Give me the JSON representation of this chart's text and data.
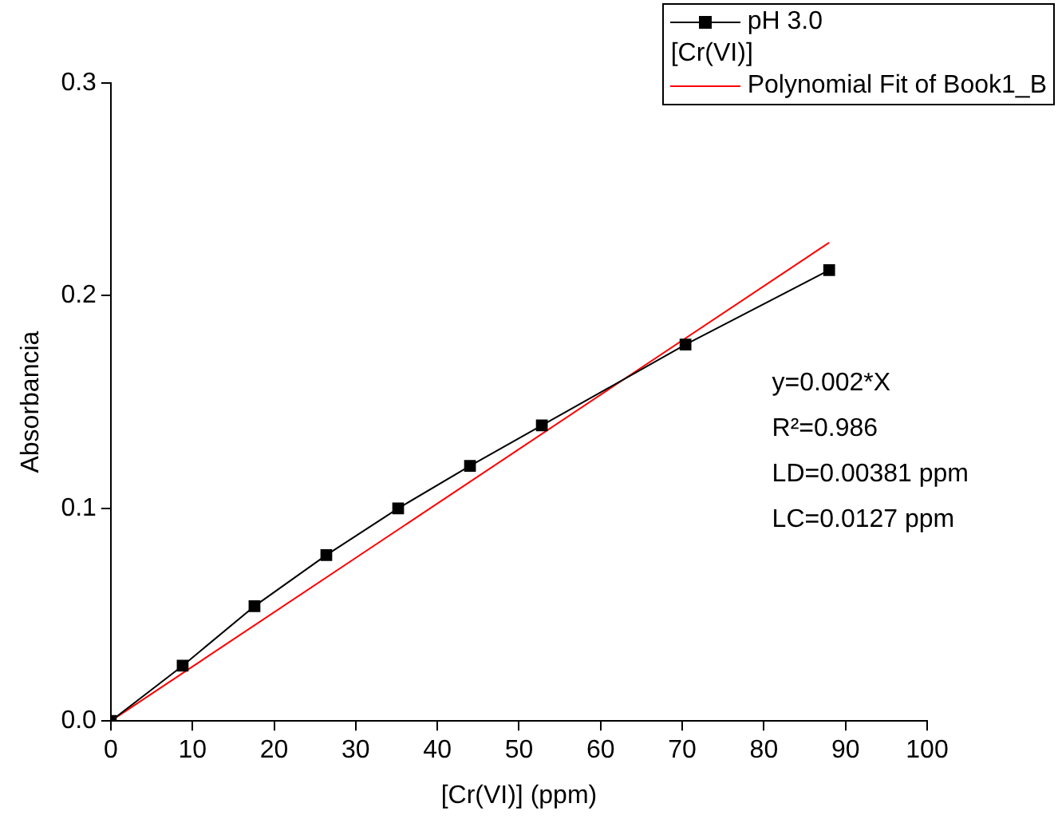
{
  "chart_data": {
    "type": "line",
    "xlabel": "[Cr(VI)] (ppm)",
    "ylabel": "Absorbancia",
    "legend_title": "[Cr(VI)]",
    "legend": "top right",
    "marker": "square",
    "grid": false,
    "xlim": [
      0,
      100
    ],
    "xticks": [
      0,
      10,
      20,
      30,
      40,
      50,
      60,
      70,
      80,
      90,
      100
    ],
    "ylim": [
      0,
      0.3
    ],
    "yticks": [
      {
        "value": 0,
        "label": "0.0"
      },
      0.1,
      0.2,
      0.3
    ],
    "series": [
      {
        "name": "pH 3.0",
        "color": "#000000",
        "x": [
          0,
          8.8,
          17.6,
          26.4,
          35.2,
          44,
          52.8,
          70.4,
          88
        ],
        "values": [
          0,
          0.026,
          0.054,
          0.078,
          0.1,
          0.12,
          0.139,
          0.177,
          0.212
        ]
      },
      {
        "name": "Polynomial Fit of Book1_B",
        "marker": "none",
        "color": "#ff0000",
        "x": [
          0,
          88
        ],
        "values": [
          0,
          0.225
        ]
      }
    ],
    "annotations": [
      "y=0.002*X",
      "R²=0.986",
      "LD=0.00381 ppm",
      "LC=0.0127 ppm"
    ]
  }
}
